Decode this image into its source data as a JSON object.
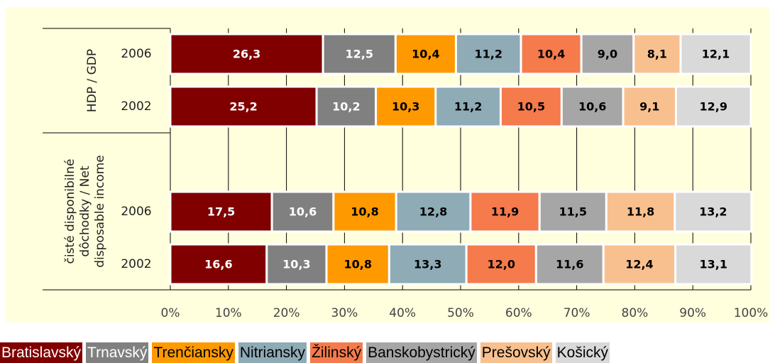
{
  "chart_data": {
    "type": "stacked_barh_percent",
    "group_labels": [
      [
        "HDP  / GDP"
      ],
      [
        "čisté disponibilné",
        "dôchodky / Net",
        "disposable income"
      ]
    ],
    "categories": [
      "2006",
      "2002",
      null,
      "2006",
      "2002"
    ],
    "series": [
      {
        "name": "Bratislavský",
        "color": "#800000",
        "values": [
          26.3,
          25.2,
          null,
          17.5,
          16.6
        ],
        "value_labels": [
          "26,3",
          "25,2",
          null,
          "17,5",
          "16,6"
        ]
      },
      {
        "name": "Trnavský",
        "color": "#808080",
        "values": [
          12.5,
          10.2,
          null,
          10.6,
          10.3
        ],
        "value_labels": [
          "12,5",
          "10,2",
          null,
          "10,6",
          "10,3"
        ]
      },
      {
        "name": "Trenčiansky",
        "color": "#ff9900",
        "values": [
          10.4,
          10.3,
          null,
          10.8,
          10.8
        ],
        "value_labels": [
          "10,4",
          "10,3",
          null,
          "10,8",
          "10,8"
        ]
      },
      {
        "name": "Nitriansky",
        "color": "#8eabb6",
        "values": [
          11.2,
          11.2,
          null,
          12.8,
          13.3
        ],
        "value_labels": [
          "11,2",
          "11,2",
          null,
          "12,8",
          "13,3"
        ]
      },
      {
        "name": "Žilinský",
        "color": "#f57a4c",
        "values": [
          10.4,
          10.5,
          null,
          11.9,
          12.0
        ],
        "value_labels": [
          "10,4",
          "10,5",
          null,
          "11,9",
          "12,0"
        ]
      },
      {
        "name": "Banskobystrický",
        "color": "#a6a6a6",
        "values": [
          9.0,
          10.6,
          null,
          11.5,
          11.6
        ],
        "value_labels": [
          "9,0",
          "10,6",
          null,
          "11,5",
          "11,6"
        ]
      },
      {
        "name": "Prešovský",
        "color": "#f9c08f",
        "values": [
          8.1,
          9.1,
          null,
          11.8,
          12.4
        ],
        "value_labels": [
          "8,1",
          "9,1",
          null,
          "11,8",
          "12,4"
        ]
      },
      {
        "name": "Košický",
        "color": "#d9d9d9",
        "values": [
          12.1,
          12.9,
          null,
          13.2,
          13.1
        ],
        "value_labels": [
          "12,1",
          "12,9",
          null,
          "13,2",
          "13,1"
        ]
      }
    ],
    "xlim": [
      0,
      100
    ],
    "xticks": [
      {
        "value": 0,
        "label": "0%"
      },
      {
        "value": 10,
        "label": "10%"
      },
      {
        "value": 20,
        "label": "20%"
      },
      {
        "value": 30,
        "label": "30%"
      },
      {
        "value": 40,
        "label": "40%"
      },
      {
        "value": 50,
        "label": "50%"
      },
      {
        "value": 60,
        "label": "60%"
      },
      {
        "value": 70,
        "label": "70%"
      },
      {
        "value": 80,
        "label": "80%"
      },
      {
        "value": 90,
        "label": "90%"
      },
      {
        "value": 100,
        "label": "100%"
      }
    ],
    "grid": true
  }
}
